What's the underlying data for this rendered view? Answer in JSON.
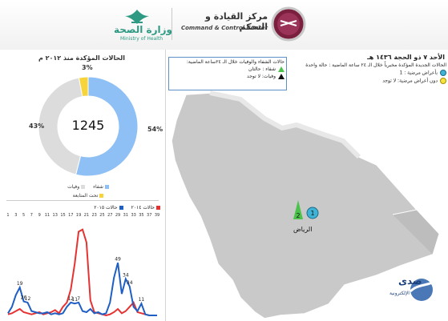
{
  "header": {
    "moh_name_ar": "وزارة الصحة",
    "moh_name_en": "Ministry of Health",
    "center_name_ar": "مركز القيادة و التحكم",
    "center_name_en": "Command & Control Center"
  },
  "donut": {
    "title": "الحالات المؤكدة منذ ٢٠١٢ م",
    "total": "1245",
    "segments": [
      {
        "name": "شفاء",
        "pct": "54%",
        "value": 54,
        "color": "#8fc0f5"
      },
      {
        "name": "وفيات",
        "pct": "43%",
        "value": 43,
        "color": "#dcdcdc"
      },
      {
        "name": "تحت المتابعة",
        "pct": "3%",
        "value": 3,
        "color": "#f7d33c"
      }
    ],
    "legend": [
      "شفاء",
      "وفيات",
      "تحت المتابعة"
    ]
  },
  "line_chart": {
    "legend_2015": "حالات ٢٠١٥",
    "legend_2014": "حالات ٢٠١٤",
    "color_2015": "#1f5fc4",
    "color_2014": "#e53232",
    "x_ticks": [
      "1",
      "3",
      "5",
      "7",
      "9",
      "11",
      "13",
      "15",
      "17",
      "19",
      "21",
      "23",
      "25",
      "27",
      "29",
      "31",
      "33",
      "35",
      "37",
      "39"
    ],
    "labels_2015": [
      "19",
      "26",
      "12",
      "12",
      "11",
      "7",
      "49",
      "34",
      "34",
      "11"
    ],
    "weeks_2015": [
      1,
      2,
      3,
      4,
      5,
      6,
      7,
      8,
      9,
      10,
      11,
      12,
      13,
      14,
      15,
      16,
      17,
      18,
      19,
      20,
      21,
      22,
      23,
      24,
      25,
      26,
      27,
      28,
      29,
      30,
      31,
      32,
      33,
      34,
      35,
      36,
      37,
      38,
      39
    ],
    "values_2015": [
      2,
      8,
      19,
      26,
      13,
      12,
      4,
      3,
      2,
      2,
      3,
      1,
      2,
      1,
      2,
      8,
      12,
      11,
      12,
      4,
      3,
      6,
      2,
      3,
      1,
      2,
      12,
      35,
      49,
      20,
      34,
      27,
      8,
      4,
      11,
      1,
      0,
      0,
      0
    ],
    "values_2014": [
      1,
      2,
      4,
      6,
      3,
      2,
      1,
      2,
      3,
      1,
      2,
      3,
      5,
      2,
      8,
      12,
      24,
      48,
      78,
      80,
      68,
      14,
      3,
      2,
      1,
      0,
      1,
      3,
      6,
      2,
      4,
      8,
      12,
      3,
      2,
      1,
      0,
      0,
      0
    ]
  },
  "map_panel": {
    "date": "الأحد ٧ ذو الحجة ١٤٣٦ هـ",
    "new_cases_title": "الحالات الجديدة المؤكدة مخبرياً خلال الـ ٢٤ ساعة الماضية : حالة واحدة",
    "symptomatic": "بأعراض مرضية : 1",
    "asymptomatic": "دون أعراض مرضية: لا توجد",
    "recovery_title": "حالات الشفاء والوفيات خلال الـ ٢٤ساعة الماضية:",
    "recovered": "شفاء :  حالتان",
    "deaths": "وفيات: لا توجد",
    "city": "الرياض",
    "marker_triangle_value": "2",
    "marker_circle_value": "1"
  },
  "watermark": {
    "ar": "صدى",
    "en": "الإلكترونية"
  }
}
